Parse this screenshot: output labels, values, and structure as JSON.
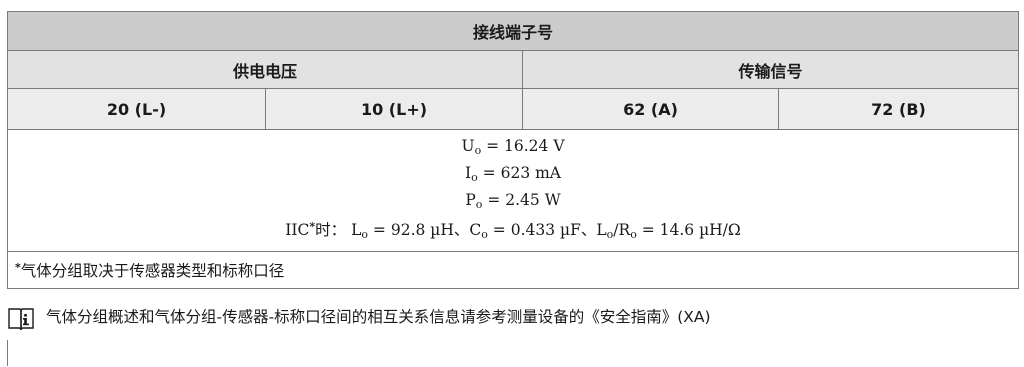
{
  "table": {
    "title": "接线端子号",
    "group_power": "供电电压",
    "group_signal": "传输信号",
    "terminals": [
      "20 (L-)",
      "10 (L+)",
      "62 (A)",
      "72 (B)"
    ],
    "values": {
      "uo": {
        "sym": "U",
        "sub": "o",
        "rest": " = 16.24 V"
      },
      "io": {
        "sym": "I",
        "sub": "o",
        "rest": " = 623 mA"
      },
      "po": {
        "sym": "P",
        "sub": "o",
        "rest": " = 2.45 W"
      },
      "iic": {
        "prefix": "IIC",
        "star": "*",
        "time_label": "时：",
        "lo_sym": "L",
        "lo_sub": "o",
        "lo_rest": " = 92.8 µH、",
        "co_sym": "C",
        "co_sub": "o",
        "co_rest": " = 0.433 µF、",
        "ratio_l": "L",
        "ratio_l_sub": "o",
        "ratio_slash": "/R",
        "ratio_r_sub": "o",
        "ratio_rest": " = 14.6 µH/Ω"
      }
    },
    "footnote_star": "*",
    "footnote_text": "气体分组取决于传感器类型和标称口径"
  },
  "info": {
    "icon": "book-info-icon",
    "text": "气体分组概述和气体分组-传感器-标称口径间的相互关系信息请参考测量设备的《安全指南》(XA)"
  }
}
